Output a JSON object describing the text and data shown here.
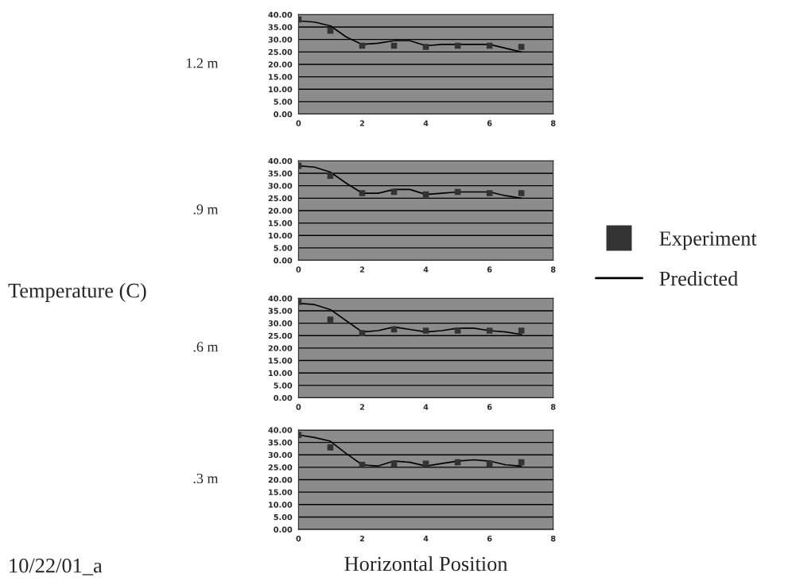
{
  "chart_data": [
    {
      "type": "line",
      "ylabel": "1.2 m",
      "annotations": [
        "Temperature (C)",
        "10/22/01_a"
      ],
      "legend": "right",
      "grid": "y",
      "xlim": [
        0,
        8
      ],
      "xticks": [
        0,
        2,
        4,
        6,
        8
      ],
      "ylim": [
        0,
        40
      ],
      "yticks": [
        {
          "value": 0,
          "label": "0.00"
        },
        {
          "value": 5,
          "label": "5.00"
        },
        {
          "value": 10,
          "label": "10.00"
        },
        {
          "value": 15,
          "label": "15.00"
        },
        {
          "value": 20,
          "label": "20.00"
        },
        {
          "value": 25,
          "label": "25.00"
        },
        {
          "value": 30,
          "label": "30.00"
        },
        {
          "value": 35,
          "label": "35.00"
        },
        {
          "value": 40,
          "label": "40.00"
        }
      ],
      "series": [
        {
          "name": "Experiment",
          "type": "scatter",
          "marker": "square",
          "color": "#333333",
          "x": [
            0,
            1,
            2,
            3,
            4,
            5,
            6,
            7
          ],
          "values": [
            38,
            33.5,
            27.5,
            27.5,
            27,
            27.5,
            27.5,
            27
          ]
        },
        {
          "name": "Predicted",
          "color": "#000000",
          "x": [
            0,
            0.5,
            1,
            1.5,
            2,
            2.5,
            3,
            3.5,
            4,
            4.5,
            5,
            5.5,
            6,
            6.5,
            7
          ],
          "values": [
            37.5,
            37,
            35.5,
            31,
            28,
            28.5,
            29.5,
            29.5,
            27.5,
            28,
            28,
            28,
            28,
            26.5,
            25
          ]
        }
      ]
    },
    {
      "type": "line",
      "ylabel": ".9 m",
      "grid": "y",
      "xlim": [
        0,
        8
      ],
      "xticks": [
        0,
        2,
        4,
        6,
        8
      ],
      "ylim": [
        0,
        40
      ],
      "yticks": [
        {
          "value": 0,
          "label": "0.00"
        },
        {
          "value": 5,
          "label": "5.00"
        },
        {
          "value": 10,
          "label": "10.00"
        },
        {
          "value": 15,
          "label": "15.00"
        },
        {
          "value": 20,
          "label": "20.00"
        },
        {
          "value": 25,
          "label": "25.00"
        },
        {
          "value": 30,
          "label": "30.00"
        },
        {
          "value": 35,
          "label": "35.00"
        },
        {
          "value": 40,
          "label": "40.00"
        }
      ],
      "series": [
        {
          "type": "scatter",
          "marker": "square",
          "color": "#333333",
          "x": [
            0,
            1,
            2,
            3,
            4,
            5,
            6,
            7
          ],
          "values": [
            38,
            34,
            27,
            27.5,
            26.5,
            27.5,
            27,
            27
          ]
        },
        {
          "color": "#000000",
          "x": [
            0,
            0.5,
            1,
            1.5,
            2,
            2.5,
            3,
            3.5,
            4,
            4.5,
            5,
            5.5,
            6,
            6.5,
            7
          ],
          "values": [
            38,
            37.5,
            35.5,
            31,
            27,
            27,
            28.5,
            28.5,
            26.5,
            27,
            27.5,
            27.5,
            27.5,
            26,
            25
          ]
        }
      ]
    },
    {
      "type": "line",
      "ylabel": ".6 m",
      "grid": "y",
      "xlim": [
        0,
        8
      ],
      "xticks": [
        0,
        2,
        4,
        6,
        8
      ],
      "ylim": [
        0,
        40
      ],
      "yticks": [
        {
          "value": 0,
          "label": "0.00"
        },
        {
          "value": 5,
          "label": "5.00"
        },
        {
          "value": 10,
          "label": "10.00"
        },
        {
          "value": 15,
          "label": "15.00"
        },
        {
          "value": 20,
          "label": "20.00"
        },
        {
          "value": 25,
          "label": "25.00"
        },
        {
          "value": 30,
          "label": "30.00"
        },
        {
          "value": 35,
          "label": "35.00"
        },
        {
          "value": 40,
          "label": "40.00"
        }
      ],
      "series": [
        {
          "type": "scatter",
          "marker": "square",
          "color": "#333333",
          "x": [
            0,
            1,
            2,
            3,
            4,
            5,
            6,
            7
          ],
          "values": [
            38.5,
            31.5,
            26,
            27.5,
            27,
            27,
            27,
            27
          ]
        },
        {
          "color": "#000000",
          "x": [
            0,
            0.5,
            1,
            1.5,
            2,
            2.5,
            3,
            3.5,
            4,
            4.5,
            5,
            5.5,
            6,
            6.5,
            7
          ],
          "values": [
            38,
            37.5,
            35.5,
            31,
            26.5,
            27,
            28.5,
            27.5,
            26.5,
            27,
            28,
            28,
            27,
            26.5,
            25.5
          ]
        }
      ]
    },
    {
      "type": "line",
      "ylabel": ".3 m",
      "xlabel": "Horizontal Position",
      "grid": "y",
      "xlim": [
        0,
        8
      ],
      "xticks": [
        0,
        2,
        4,
        6,
        8
      ],
      "ylim": [
        0,
        40
      ],
      "yticks": [
        {
          "value": 0,
          "label": "0.00"
        },
        {
          "value": 5,
          "label": "5.00"
        },
        {
          "value": 10,
          "label": "10.00"
        },
        {
          "value": 15,
          "label": "15.00"
        },
        {
          "value": 20,
          "label": "20.00"
        },
        {
          "value": 25,
          "label": "25.00"
        },
        {
          "value": 30,
          "label": "30.00"
        },
        {
          "value": 35,
          "label": "35.00"
        },
        {
          "value": 40,
          "label": "40.00"
        }
      ],
      "series": [
        {
          "type": "scatter",
          "marker": "square",
          "color": "#333333",
          "x": [
            0,
            1,
            2,
            3,
            4,
            5,
            6,
            7
          ],
          "values": [
            38,
            33,
            26,
            26.5,
            26.5,
            27,
            26.5,
            27
          ]
        },
        {
          "color": "#000000",
          "x": [
            0,
            0.5,
            1,
            1.5,
            2,
            2.5,
            3,
            3.5,
            4,
            4.5,
            5,
            5.5,
            6,
            6.5,
            7
          ],
          "values": [
            38,
            37,
            35.5,
            30.5,
            26,
            25.5,
            27.5,
            27,
            25.5,
            26.5,
            27.5,
            28,
            27.5,
            26,
            25.5
          ]
        }
      ]
    }
  ]
}
